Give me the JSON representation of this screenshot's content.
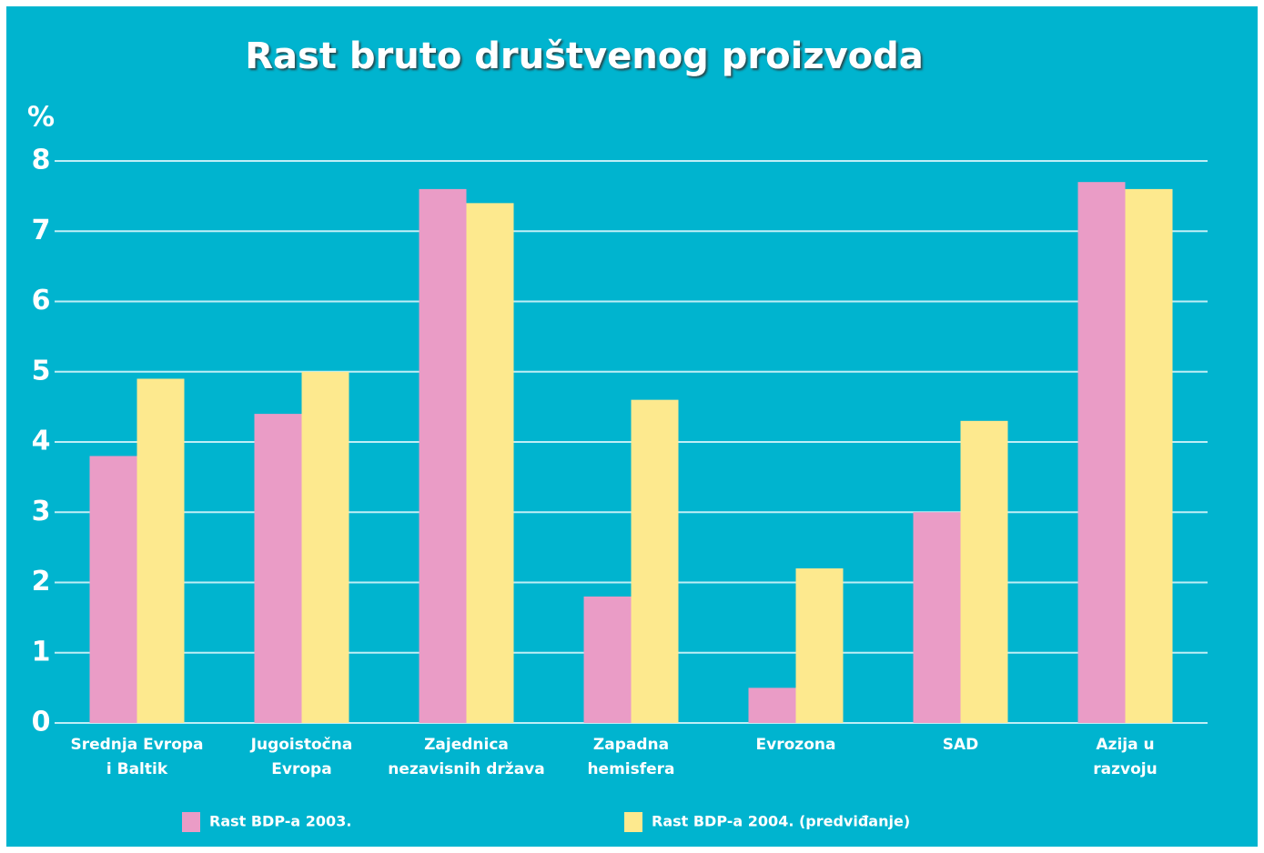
{
  "chart_data": {
    "type": "bar",
    "title": "Rast bruto društvenog proizvoda",
    "y_label": "%",
    "categories": [
      [
        "Srednja Evropa",
        "i Baltik"
      ],
      [
        "Jugoistočna",
        "Evropa"
      ],
      [
        "Zajednica",
        "nezavisnih država"
      ],
      [
        "Zapadna",
        "hemisfera"
      ],
      [
        "Evrozona"
      ],
      [
        "SAD"
      ],
      [
        "Azija u",
        "razvoju"
      ]
    ],
    "series": [
      {
        "name": "Rast BDP-a 2003.",
        "color": "#ea9cc6",
        "values": [
          3.8,
          4.4,
          7.6,
          1.8,
          0.5,
          3.0,
          7.7
        ]
      },
      {
        "name": "Rast BDP-a 2004. (predviđanje)",
        "color": "#fde98e",
        "values": [
          4.9,
          5.0,
          7.4,
          4.6,
          2.2,
          4.3,
          7.6
        ]
      }
    ],
    "ylim": [
      0,
      8
    ],
    "yticks": [
      0,
      1,
      2,
      3,
      4,
      5,
      6,
      7,
      8
    ],
    "grid": true
  }
}
